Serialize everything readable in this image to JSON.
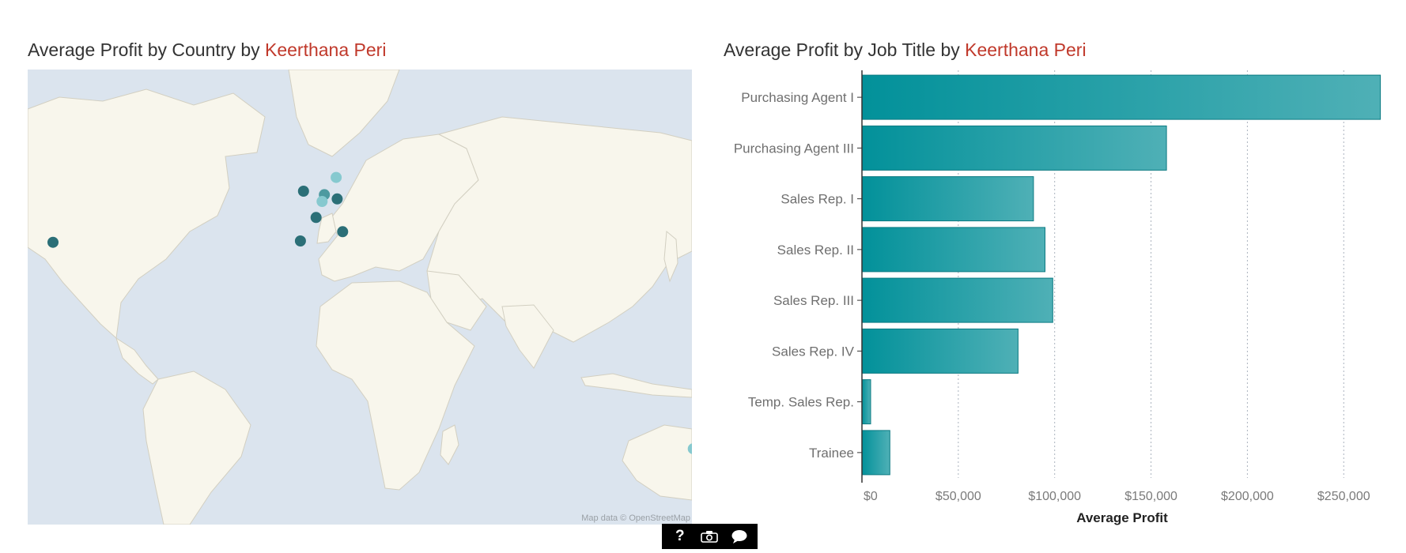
{
  "map_panel": {
    "title_prefix": "Average Profit by Country by ",
    "author": "Keerthana Peri",
    "attribution": "Map data © OpenStreetMap",
    "markers": [
      {
        "name": "United States",
        "lat": 39.8,
        "lon": -98.6,
        "color": "#2b6f77"
      },
      {
        "name": "United Kingdom",
        "lat": 53.0,
        "lon": -2.5,
        "color": "#2b6f77"
      },
      {
        "name": "Denmark",
        "lat": 56.0,
        "lon": 10.0,
        "color": "#86c9cf"
      },
      {
        "name": "Netherlands",
        "lat": 52.2,
        "lon": 5.5,
        "color": "#4d9aa0"
      },
      {
        "name": "Belgium",
        "lat": 50.6,
        "lon": 4.6,
        "color": "#86c9cf"
      },
      {
        "name": "Germany",
        "lat": 51.2,
        "lon": 10.4,
        "color": "#2b6f77"
      },
      {
        "name": "France",
        "lat": 46.6,
        "lon": 2.3,
        "color": "#2b6f77"
      },
      {
        "name": "Spain",
        "lat": 40.2,
        "lon": -3.7,
        "color": "#2b6f77"
      },
      {
        "name": "Italy",
        "lat": 42.8,
        "lon": 12.5,
        "color": "#2b6f77"
      },
      {
        "name": "Australia",
        "lat": -32.5,
        "lon": 147.0,
        "color": "#86c9cf"
      }
    ]
  },
  "chart_panel": {
    "title_prefix": "Average Profit by Job Title by ",
    "author": "Keerthana Peri"
  },
  "chart_data": {
    "type": "bar",
    "orientation": "horizontal",
    "title": "Average Profit by Job Title by Keerthana Peri",
    "xlabel": "Average Profit",
    "ylabel": "",
    "xlim": [
      0,
      270000
    ],
    "xticks": [
      0,
      50000,
      100000,
      150000,
      200000,
      250000
    ],
    "xtick_labels": [
      "$0",
      "$50,000",
      "$100,000",
      "$150,000",
      "$200,000",
      "$250,000"
    ],
    "categories": [
      "Purchasing Agent I",
      "Purchasing Agent III",
      "Sales Rep. I",
      "Sales Rep. II",
      "Sales Rep. III",
      "Sales Rep. IV",
      "Temp. Sales Rep.",
      "Trainee"
    ],
    "values": [
      269000,
      158000,
      89000,
      95000,
      99000,
      81000,
      4500,
      14500
    ],
    "colors": {
      "bar_dark": "#02919a",
      "bar_light": "#4fb0b6",
      "bar_stroke": "#0b7a82"
    }
  },
  "toolbar": {
    "help_icon": "question-mark",
    "video_icon": "camera-icon",
    "comment_icon": "speech-bubble"
  }
}
